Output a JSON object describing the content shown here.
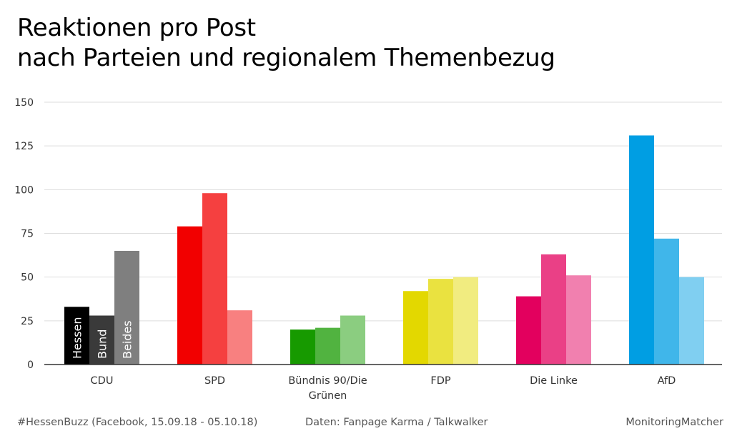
{
  "title_line1": "Reaktionen pro Post",
  "title_line2": "nach Parteien und regionalem Themenbezug",
  "footer": {
    "left": "#HessenBuzz (Facebook, 15.09.18 - 05.10.18)",
    "middle": "Daten: Fanpage Karma / Talkwalker",
    "right": "MonitoringMatcher"
  },
  "chart_data": {
    "type": "bar",
    "title": "Reaktionen pro Post nach Parteien und regionalem Themenbezug",
    "xlabel": "",
    "ylabel": "",
    "ylim": [
      0,
      150
    ],
    "yticks": [
      0,
      25,
      50,
      75,
      100,
      125,
      150
    ],
    "grid": true,
    "legend": "in-bar labels on CDU group",
    "categories": [
      "CDU",
      "SPD",
      "Bündnis 90/Die Grünen",
      "FDP",
      "Die Linke",
      "AfD"
    ],
    "category_label_lines": [
      [
        "CDU"
      ],
      [
        "SPD"
      ],
      [
        "Bündnis 90/Die",
        "Grünen"
      ],
      [
        "FDP"
      ],
      [
        "Die Linke"
      ],
      [
        "AfD"
      ]
    ],
    "series": [
      {
        "name": "Hessen",
        "values": [
          33,
          79,
          20,
          42,
          39,
          131
        ]
      },
      {
        "name": "Bund",
        "values": [
          28,
          98,
          21,
          49,
          63,
          72
        ]
      },
      {
        "name": "Beides",
        "values": [
          65,
          31,
          28,
          50,
          51,
          50
        ]
      }
    ],
    "colors": [
      [
        "#000000",
        "#3a3a3a",
        "#7f7f7f"
      ],
      [
        "#f20000",
        "#f54040",
        "#f88080"
      ],
      [
        "#179a00",
        "#51b340",
        "#8bcd80"
      ],
      [
        "#e3d800",
        "#eae240",
        "#f1ec80"
      ],
      [
        "#e3005e",
        "#ea4086",
        "#f180af"
      ],
      [
        "#009ee3",
        "#40b6ea",
        "#80cff1"
      ]
    ],
    "gridline_color": "#dddddd",
    "axis_color": "#333333"
  }
}
